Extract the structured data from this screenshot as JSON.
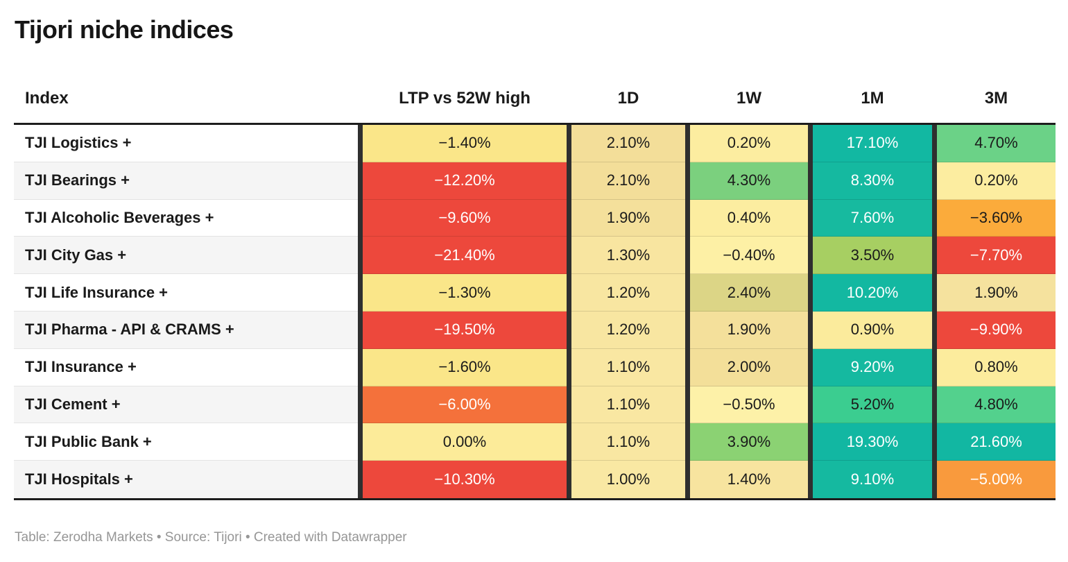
{
  "title": "Tijori niche indices",
  "footer": {
    "text": "Table: Zerodha Markets • Source: Tijori • Created with Datawrapper"
  },
  "styles": {
    "border_dark": "#1d1d1d",
    "column_separator": "#2f2f2f",
    "zebra_white": "#ffffff",
    "zebra_gray": "#f5f5f5",
    "heat_red": "#ED483C",
    "heat_orange": "#FBAB3B",
    "heat_yellow": "#FAE689",
    "heat_green": "#7BD07E",
    "heat_teal": "#14B8A1"
  },
  "chart_data": {
    "type": "table",
    "title": "Tijori niche indices",
    "columns": [
      "Index",
      "LTP vs 52W high",
      "1D",
      "1W",
      "1M",
      "3M"
    ],
    "value_columns": [
      "LTP vs 52W high",
      "1D",
      "1W",
      "1M",
      "3M"
    ],
    "rows": [
      {
        "index": "TJI Logistics +",
        "values": [
          "−1.40%",
          "2.10%",
          "0.20%",
          "17.10%",
          "4.70%"
        ],
        "cell_colors": [
          "#FAE689",
          "#F3DE99",
          "#FCEDA0",
          "#12B8A2",
          "#6BD287"
        ],
        "text_colors": [
          "#1a1a1a",
          "#1a1a1a",
          "#1a1a1a",
          "#ffffff",
          "#1a1a1a"
        ]
      },
      {
        "index": "TJI Bearings +",
        "values": [
          "−12.20%",
          "2.10%",
          "4.30%",
          "8.30%",
          "0.20%"
        ],
        "cell_colors": [
          "#ED483C",
          "#F3DE99",
          "#7BD07E",
          "#15B9A0",
          "#FCEDA0"
        ],
        "text_colors": [
          "#ffffff",
          "#1a1a1a",
          "#1a1a1a",
          "#ffffff",
          "#1a1a1a"
        ]
      },
      {
        "index": "TJI Alcoholic Beverages +",
        "values": [
          "−9.60%",
          "1.90%",
          "0.40%",
          "7.60%",
          "−3.60%"
        ],
        "cell_colors": [
          "#ED483C",
          "#F4E09B",
          "#FCEDA0",
          "#17BA9F",
          "#FBAB3B"
        ],
        "text_colors": [
          "#ffffff",
          "#1a1a1a",
          "#1a1a1a",
          "#ffffff",
          "#1a1a1a"
        ]
      },
      {
        "index": "TJI City Gas +",
        "values": [
          "−21.40%",
          "1.30%",
          "−0.40%",
          "3.50%",
          "−7.70%"
        ],
        "cell_colors": [
          "#ED483C",
          "#F8E5A0",
          "#FDF0A5",
          "#A7CF62",
          "#ED483C"
        ],
        "text_colors": [
          "#ffffff",
          "#1a1a1a",
          "#1a1a1a",
          "#1a1a1a",
          "#ffffff"
        ]
      },
      {
        "index": "TJI Life Insurance +",
        "values": [
          "−1.30%",
          "1.20%",
          "2.40%",
          "10.20%",
          "1.90%"
        ],
        "cell_colors": [
          "#FAE689",
          "#F8E6A1",
          "#DCD586",
          "#13B8A1",
          "#F5E29E"
        ],
        "text_colors": [
          "#1a1a1a",
          "#1a1a1a",
          "#1a1a1a",
          "#ffffff",
          "#1a1a1a"
        ]
      },
      {
        "index": "TJI Pharma - API & CRAMS +",
        "values": [
          "−19.50%",
          "1.20%",
          "1.90%",
          "0.90%",
          "−9.90%"
        ],
        "cell_colors": [
          "#ED483C",
          "#F8E6A1",
          "#F4E09B",
          "#FBEB9C",
          "#ED483C"
        ],
        "text_colors": [
          "#ffffff",
          "#1a1a1a",
          "#1a1a1a",
          "#1a1a1a",
          "#ffffff"
        ]
      },
      {
        "index": "TJI Insurance +",
        "values": [
          "−1.60%",
          "1.10%",
          "2.00%",
          "9.20%",
          "0.80%"
        ],
        "cell_colors": [
          "#FAE689",
          "#F9E7A2",
          "#F3DF99",
          "#15B9A0",
          "#FCEC9D"
        ],
        "text_colors": [
          "#1a1a1a",
          "#1a1a1a",
          "#1a1a1a",
          "#ffffff",
          "#1a1a1a"
        ]
      },
      {
        "index": "TJI Cement +",
        "values": [
          "−6.00%",
          "1.10%",
          "−0.50%",
          "5.20%",
          "4.80%"
        ],
        "cell_colors": [
          "#F4713B",
          "#F9E7A2",
          "#FDF1A8",
          "#3BCD90",
          "#53D18D"
        ],
        "text_colors": [
          "#ffffff",
          "#1a1a1a",
          "#1a1a1a",
          "#1a1a1a",
          "#1a1a1a"
        ]
      },
      {
        "index": "TJI Public Bank +",
        "values": [
          "0.00%",
          "1.10%",
          "3.90%",
          "19.30%",
          "21.60%"
        ],
        "cell_colors": [
          "#FCEB99",
          "#F9E7A2",
          "#8BD273",
          "#12B7A2",
          "#12B7A2"
        ],
        "text_colors": [
          "#1a1a1a",
          "#1a1a1a",
          "#1a1a1a",
          "#ffffff",
          "#ffffff"
        ]
      },
      {
        "index": "TJI Hospitals +",
        "values": [
          "−10.30%",
          "1.00%",
          "1.40%",
          "9.10%",
          "−5.00%"
        ],
        "cell_colors": [
          "#ED483C",
          "#F9E8A3",
          "#F7E49F",
          "#15B9A0",
          "#F99A3D"
        ],
        "text_colors": [
          "#ffffff",
          "#1a1a1a",
          "#1a1a1a",
          "#ffffff",
          "#ffffff"
        ]
      }
    ]
  }
}
